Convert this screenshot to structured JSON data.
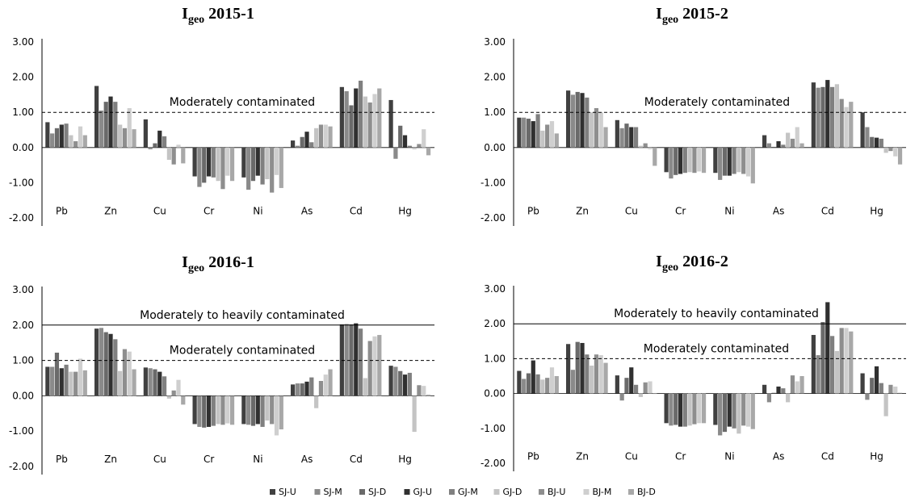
{
  "legend": [
    {
      "name": "SJ-U",
      "color": "#404040"
    },
    {
      "name": "SJ-M",
      "color": "#8a8a8a"
    },
    {
      "name": "SJ-D",
      "color": "#6a6a6a"
    },
    {
      "name": "GJ-U",
      "color": "#303030"
    },
    {
      "name": "GJ-M",
      "color": "#808080"
    },
    {
      "name": "GJ-D",
      "color": "#c4c4c4"
    },
    {
      "name": "BJ-U",
      "color": "#8e8e8e"
    },
    {
      "name": "BJ-M",
      "color": "#cfcfcf"
    },
    {
      "name": "BJ-D",
      "color": "#a8a8a8"
    }
  ],
  "chart_data": [
    {
      "type": "bar",
      "title_main": "I",
      "title_sub": "geo",
      "title_rest": " 2015-1",
      "categories": [
        "Pb",
        "Zn",
        "Cu",
        "Cr",
        "Ni",
        "As",
        "Cd",
        "Hg"
      ],
      "yticks": [
        "3.00",
        "2.00",
        "1.00",
        "0.00",
        "-1.00",
        "-2.00"
      ],
      "ylim": [
        -2,
        3
      ],
      "references": [
        {
          "value": 1.0,
          "style": "dashed",
          "label": "Moderately contaminated"
        }
      ],
      "series": [
        {
          "values": [
            0.72,
            1.75,
            0.8,
            -0.82,
            -0.85,
            0.2,
            1.72,
            1.35
          ]
        },
        {
          "values": [
            0.4,
            1.05,
            -0.05,
            -1.12,
            -1.2,
            0.05,
            1.6,
            -0.32
          ]
        },
        {
          "values": [
            0.55,
            1.3,
            0.12,
            -1.0,
            -0.95,
            0.3,
            1.2,
            0.62
          ]
        },
        {
          "values": [
            0.65,
            1.45,
            0.48,
            -0.82,
            -0.8,
            0.45,
            1.68,
            0.35
          ]
        },
        {
          "values": [
            0.68,
            1.3,
            0.32,
            -0.85,
            -1.05,
            0.15,
            1.9,
            0.05
          ]
        },
        {
          "values": [
            0.35,
            0.65,
            -0.35,
            -0.95,
            -0.9,
            0.55,
            1.45,
            -0.05
          ]
        },
        {
          "values": [
            0.18,
            0.55,
            -0.48,
            -1.18,
            -1.28,
            0.65,
            1.28,
            0.1
          ]
        },
        {
          "values": [
            0.6,
            1.12,
            0.08,
            -0.8,
            -0.78,
            0.65,
            1.52,
            0.52
          ]
        },
        {
          "values": [
            0.35,
            0.52,
            -0.45,
            -0.95,
            -1.15,
            0.6,
            1.68,
            -0.22
          ]
        }
      ]
    },
    {
      "type": "bar",
      "title_main": "I",
      "title_sub": "geo",
      "title_rest": " 2015-2",
      "categories": [
        "Pb",
        "Zn",
        "Cu",
        "Cr",
        "Ni",
        "As",
        "Cd",
        "Hg"
      ],
      "yticks": [
        "3.00",
        "2.00",
        "1.00",
        "0.00",
        "-1.00",
        "-2.00"
      ],
      "ylim": [
        -2,
        3
      ],
      "references": [
        {
          "value": 1.0,
          "style": "dashed",
          "label": "Moderately contaminated"
        }
      ],
      "series": [
        {
          "values": [
            0.85,
            1.62,
            0.78,
            -0.7,
            -0.72,
            0.35,
            1.85,
            1.0
          ]
        },
        {
          "values": [
            0.85,
            1.5,
            0.55,
            -0.88,
            -0.92,
            0.12,
            1.7,
            0.58
          ]
        },
        {
          "values": [
            0.82,
            1.58,
            0.68,
            -0.78,
            -0.8,
            0.02,
            1.72,
            0.3
          ]
        },
        {
          "values": [
            0.75,
            1.55,
            0.58,
            -0.75,
            -0.8,
            0.18,
            1.92,
            0.28
          ]
        },
        {
          "values": [
            0.95,
            1.42,
            0.58,
            -0.72,
            -0.75,
            0.08,
            1.72,
            0.25
          ]
        },
        {
          "values": [
            0.48,
            1.0,
            0.05,
            -0.7,
            -0.7,
            0.42,
            1.8,
            -0.15
          ]
        },
        {
          "values": [
            0.65,
            1.12,
            0.12,
            -0.72,
            -0.75,
            0.25,
            1.38,
            -0.1
          ]
        },
        {
          "values": [
            0.75,
            1.0,
            -0.05,
            -0.68,
            -0.82,
            0.58,
            1.15,
            -0.25
          ]
        },
        {
          "values": [
            0.4,
            0.58,
            -0.52,
            -0.72,
            -1.02,
            0.12,
            1.3,
            -0.48
          ]
        }
      ]
    },
    {
      "type": "bar",
      "title_main": "I",
      "title_sub": "geo",
      "title_rest": " 2016-1",
      "categories": [
        "Pb",
        "Zn",
        "Cu",
        "Cr",
        "Ni",
        "As",
        "Cd",
        "Hg"
      ],
      "yticks": [
        "3.00",
        "2.00",
        "1.00",
        "0.00",
        "-1.00",
        "-2.00"
      ],
      "ylim": [
        -2,
        3
      ],
      "references": [
        {
          "value": 2.0,
          "style": "solid",
          "label": "Moderately to heavily contaminated"
        },
        {
          "value": 1.0,
          "style": "dashed",
          "label": "Moderately contaminated"
        }
      ],
      "series": [
        {
          "values": [
            0.82,
            1.9,
            0.8,
            -0.8,
            -0.8,
            0.32,
            2.02,
            0.85
          ]
        },
        {
          "values": [
            0.82,
            1.92,
            0.78,
            -0.88,
            -0.82,
            0.35,
            2.03,
            0.82
          ]
        },
        {
          "values": [
            1.22,
            1.8,
            0.75,
            -0.9,
            -0.85,
            0.35,
            2.02,
            0.7
          ]
        },
        {
          "values": [
            0.78,
            1.75,
            0.68,
            -0.88,
            -0.8,
            0.4,
            2.05,
            0.6
          ]
        },
        {
          "values": [
            0.88,
            1.6,
            0.55,
            -0.85,
            -0.88,
            0.52,
            1.9,
            0.65
          ]
        },
        {
          "values": [
            0.68,
            0.7,
            -0.08,
            -0.8,
            -0.7,
            -0.35,
            0.5,
            -1.02
          ]
        },
        {
          "values": [
            0.68,
            1.32,
            0.15,
            -0.82,
            -0.8,
            0.42,
            1.55,
            0.3
          ]
        },
        {
          "values": [
            1.05,
            1.25,
            0.45,
            -0.78,
            -1.12,
            0.6,
            1.68,
            0.28
          ]
        },
        {
          "values": [
            0.72,
            0.75,
            -0.25,
            -0.82,
            -0.95,
            0.75,
            1.72,
            0.03
          ]
        }
      ]
    },
    {
      "type": "bar",
      "title_main": "I",
      "title_sub": "geo",
      "title_rest": " 2016-2",
      "categories": [
        "Pb",
        "Zn",
        "Cu",
        "Cr",
        "Ni",
        "As",
        "Cd",
        "Hg"
      ],
      "yticks": [
        "3.00",
        "2.00",
        "1.00",
        "0.00",
        "-1.00",
        "-2.00"
      ],
      "ylim": [
        -2,
        3
      ],
      "references": [
        {
          "value": 2.0,
          "style": "solid",
          "label": "Moderately to heavily contaminated"
        },
        {
          "value": 1.0,
          "style": "dashed",
          "label": "Moderately contaminated"
        }
      ],
      "series": [
        {
          "values": [
            0.65,
            1.42,
            0.52,
            -0.85,
            -0.9,
            0.25,
            1.68,
            0.58
          ]
        },
        {
          "values": [
            0.42,
            0.68,
            -0.2,
            -0.92,
            -1.2,
            -0.25,
            1.1,
            -0.18
          ]
        },
        {
          "values": [
            0.58,
            1.48,
            0.45,
            -0.9,
            -1.1,
            0.02,
            2.05,
            0.45
          ]
        },
        {
          "values": [
            0.95,
            1.45,
            0.75,
            -0.95,
            -0.95,
            0.2,
            2.62,
            0.78
          ]
        },
        {
          "values": [
            0.55,
            1.12,
            0.25,
            -0.95,
            -1.0,
            0.15,
            1.65,
            0.3
          ]
        },
        {
          "values": [
            0.4,
            0.8,
            -0.1,
            -0.92,
            -1.15,
            -0.25,
            1.22,
            -0.65
          ]
        },
        {
          "values": [
            0.45,
            1.12,
            0.32,
            -0.88,
            -0.92,
            0.52,
            1.88,
            0.25
          ]
        },
        {
          "values": [
            0.75,
            1.1,
            0.35,
            -0.85,
            -0.95,
            0.35,
            1.88,
            0.2
          ]
        },
        {
          "values": [
            0.5,
            0.88,
            0.0,
            -0.85,
            -1.02,
            0.5,
            1.78,
            0.02
          ]
        }
      ]
    }
  ]
}
